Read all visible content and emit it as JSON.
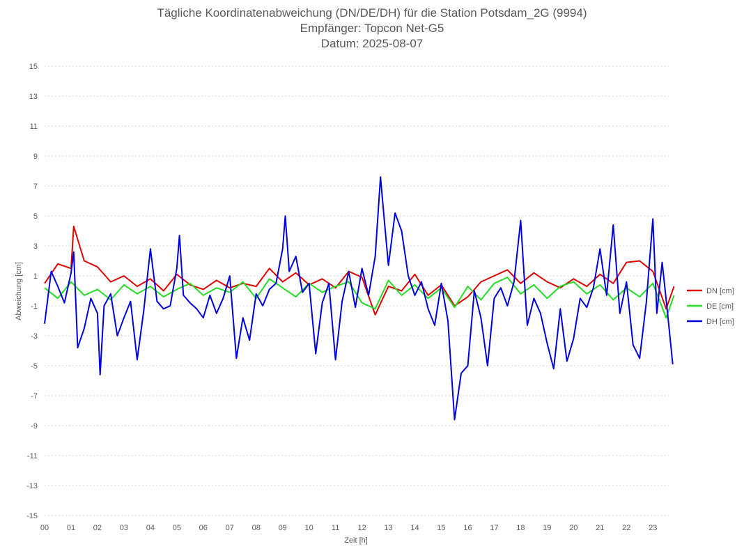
{
  "chart_data": {
    "type": "line",
    "title": "Tägliche Koordinatenabweichung (DN/DE/DH) für die Station Potsdam_2G (9994)",
    "subtitle": [
      "Empfänger: Topcon Net-G5",
      "Datum: 2025-08-07"
    ],
    "xlabel": "Zeit [h]",
    "ylabel": "Abweichung [cm]",
    "xlim": [
      0,
      24
    ],
    "ylim": [
      -15,
      15
    ],
    "x_ticks": [
      "00",
      "01",
      "02",
      "03",
      "04",
      "05",
      "06",
      "07",
      "08",
      "09",
      "10",
      "11",
      "12",
      "13",
      "14",
      "15",
      "16",
      "17",
      "18",
      "19",
      "20",
      "21",
      "22",
      "23"
    ],
    "y_ticks": [
      15,
      13,
      11,
      9,
      7,
      5,
      3,
      1,
      -1,
      -3,
      -5,
      -7,
      -9,
      -11,
      -13,
      -15
    ],
    "grid": true,
    "legend_position": "right",
    "series": [
      {
        "name": "DN [cm]",
        "color": "#e00000",
        "x": [
          0,
          0.5,
          1,
          1.1,
          1.5,
          2,
          2.5,
          3,
          3.5,
          4,
          4.5,
          5,
          5.5,
          6,
          6.5,
          7,
          7.5,
          8,
          8.5,
          9,
          9.5,
          10,
          10.5,
          11,
          11.5,
          12,
          12.5,
          13,
          13.5,
          14,
          14.5,
          15,
          15.5,
          16,
          16.5,
          17,
          17.5,
          18,
          18.5,
          19,
          19.5,
          20,
          20.5,
          21,
          21.5,
          22,
          22.5,
          23,
          23.5,
          23.8
        ],
        "values": [
          0.5,
          1.8,
          1.5,
          4.3,
          2.0,
          1.6,
          0.6,
          1.0,
          0.3,
          0.8,
          0.0,
          1.1,
          0.4,
          0.1,
          0.7,
          0.2,
          0.5,
          0.3,
          1.5,
          0.6,
          1.2,
          0.4,
          0.8,
          0.2,
          1.3,
          0.9,
          -1.6,
          0.3,
          0.0,
          1.1,
          -0.3,
          0.4,
          -1.0,
          -0.4,
          0.6,
          1.0,
          1.4,
          0.5,
          1.2,
          0.6,
          0.2,
          0.8,
          0.3,
          1.1,
          0.5,
          1.9,
          2.0,
          1.3,
          -1.2,
          0.3
        ]
      },
      {
        "name": "DE [cm]",
        "color": "#22dd22",
        "x": [
          0,
          0.5,
          1,
          1.5,
          2,
          2.5,
          3,
          3.5,
          4,
          4.5,
          5,
          5.5,
          6,
          6.5,
          7,
          7.5,
          8,
          8.5,
          9,
          9.5,
          10,
          10.5,
          11,
          11.5,
          12,
          12.5,
          13,
          13.5,
          14,
          14.5,
          15,
          15.5,
          16,
          16.5,
          17,
          17.5,
          18,
          18.5,
          19,
          19.5,
          20,
          20.5,
          21,
          21.5,
          22,
          22.5,
          23,
          23.5,
          23.8
        ],
        "values": [
          0.2,
          -0.5,
          0.6,
          -0.3,
          0.1,
          -0.6,
          0.4,
          -0.2,
          0.3,
          -0.4,
          0.1,
          0.5,
          -0.3,
          0.2,
          -0.1,
          0.6,
          -0.5,
          0.8,
          0.2,
          -0.4,
          0.5,
          -0.1,
          0.3,
          0.6,
          -0.8,
          -1.2,
          0.7,
          -0.3,
          0.4,
          -0.5,
          0.2,
          -1.1,
          0.3,
          -0.6,
          0.5,
          0.9,
          -0.2,
          0.4,
          -0.5,
          0.3,
          0.6,
          -0.2,
          0.4,
          -0.6,
          0.2,
          -0.4,
          0.5,
          -1.8,
          -0.3
        ]
      },
      {
        "name": "DH [cm]",
        "color": "#0000dd",
        "x": [
          0,
          0.25,
          0.5,
          0.75,
          1,
          1.1,
          1.25,
          1.5,
          1.75,
          2,
          2.1,
          2.25,
          2.5,
          2.75,
          3,
          3.25,
          3.5,
          3.75,
          4,
          4.25,
          4.5,
          4.75,
          5,
          5.1,
          5.25,
          5.5,
          5.75,
          6,
          6.25,
          6.5,
          6.75,
          7,
          7.25,
          7.5,
          7.75,
          8,
          8.25,
          8.5,
          8.75,
          9,
          9.1,
          9.25,
          9.5,
          9.75,
          10,
          10.25,
          10.5,
          10.75,
          11,
          11.25,
          11.5,
          11.75,
          12,
          12.25,
          12.5,
          12.7,
          12.85,
          13,
          13.25,
          13.5,
          13.75,
          14,
          14.25,
          14.5,
          14.75,
          15,
          15.25,
          15.5,
          15.75,
          16,
          16.25,
          16.5,
          16.75,
          17,
          17.25,
          17.5,
          17.75,
          18,
          18.25,
          18.5,
          18.75,
          19,
          19.25,
          19.5,
          19.75,
          20,
          20.25,
          20.5,
          20.75,
          21,
          21.25,
          21.5,
          21.75,
          22,
          22.25,
          22.5,
          22.75,
          23,
          23.15,
          23.35,
          23.55,
          23.75
        ],
        "values": [
          -2.2,
          1.3,
          0.3,
          -0.8,
          1.2,
          2.6,
          -3.8,
          -2.5,
          -0.5,
          -1.5,
          -5.6,
          -1.0,
          -0.2,
          -3.0,
          -1.8,
          -0.7,
          -4.6,
          -1.3,
          2.8,
          -0.7,
          -1.2,
          -1.0,
          1.5,
          3.7,
          -0.3,
          -0.8,
          -1.2,
          -1.8,
          -0.3,
          -1.5,
          -0.5,
          1.0,
          -4.5,
          -1.8,
          -3.3,
          -0.2,
          -1.0,
          0.1,
          0.5,
          2.8,
          5.0,
          1.3,
          2.3,
          -0.1,
          0.5,
          -4.2,
          -0.8,
          0.5,
          -4.6,
          -0.7,
          1.3,
          -1.1,
          1.5,
          -0.3,
          2.3,
          7.6,
          4.6,
          1.7,
          5.2,
          4.0,
          1.0,
          -0.3,
          0.6,
          -1.2,
          -2.3,
          0.5,
          -2.0,
          -8.6,
          -5.5,
          -5.0,
          0.0,
          -1.8,
          -5.0,
          -0.5,
          0.2,
          -1.0,
          0.6,
          4.7,
          -2.3,
          -0.5,
          -1.5,
          -3.5,
          -5.2,
          -1.2,
          -4.7,
          -3.2,
          -0.5,
          -1.1,
          0.2,
          2.8,
          -0.3,
          4.4,
          -1.5,
          0.6,
          -3.6,
          -4.5,
          -0.8,
          4.8,
          -1.5,
          1.9,
          -1.4,
          -4.9
        ]
      }
    ]
  }
}
